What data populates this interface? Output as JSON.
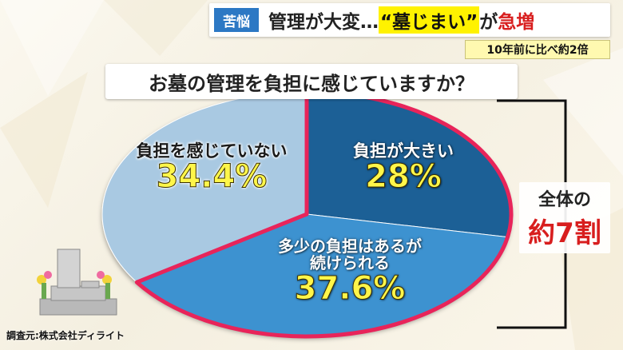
{
  "header": {
    "tag": "苦悩",
    "headline_before": "管理が大変…",
    "headline_highlight": "“墓じまい”",
    "headline_mid": "が",
    "headline_red": "急増",
    "subheadline": "10年前に比べ約2倍"
  },
  "question": "お墓の管理を負担に感じていますか？",
  "bracket": {
    "line1": "全体の",
    "line2": "約7割"
  },
  "source": "調査元:株式会社ディライト",
  "colors": {
    "slice_heavy": "#1f6196",
    "slice_some": "#3d92d0",
    "slice_none": "#a9c9e2",
    "highlight_border": "#e8245a",
    "accent_red": "#d81e1e",
    "tag_blue": "#2c78c4"
  },
  "chart_data": {
    "type": "pie",
    "title": "お墓の管理を負担に感じていますか？",
    "slices": [
      {
        "label": "負担が大きい",
        "label_lines": [
          "負担が大きい"
        ],
        "value": 28,
        "display": "28%",
        "color": "#1f6196"
      },
      {
        "label": "多少の負担はあるが続けられる",
        "label_lines": [
          "多少の負担はあるが",
          "続けられる"
        ],
        "value": 37.6,
        "display": "37.6%",
        "color": "#3d92d0"
      },
      {
        "label": "負担を感じていない",
        "label_lines": [
          "負担を感じていない"
        ],
        "value": 34.4,
        "display": "34.4%",
        "color": "#a9c9e2"
      }
    ]
  }
}
